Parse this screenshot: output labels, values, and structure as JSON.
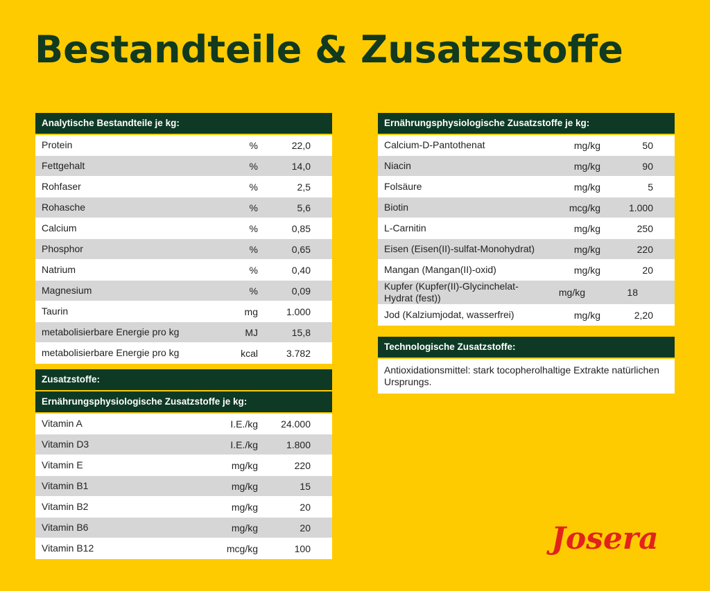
{
  "title": "Bestandteile & Zusatzstoffe",
  "analytic": {
    "header": "Analytische Bestandteile je kg:",
    "rows": [
      [
        "Protein",
        "%",
        "22,0"
      ],
      [
        "Fettgehalt",
        "%",
        "14,0"
      ],
      [
        "Rohfaser",
        "%",
        "2,5"
      ],
      [
        "Rohasche",
        "%",
        "5,6"
      ],
      [
        "Calcium",
        "%",
        "0,85"
      ],
      [
        "Phosphor",
        "%",
        "0,65"
      ],
      [
        "Natrium",
        "%",
        "0,40"
      ],
      [
        "Magnesium",
        "%",
        "0,09"
      ],
      [
        "Taurin",
        "mg",
        "1.000"
      ],
      [
        "metabolisierbare Energie pro kg",
        "MJ",
        "15,8"
      ],
      [
        "metabolisierbare Energie pro kg",
        "kcal",
        "3.782"
      ]
    ]
  },
  "additives": {
    "header": "Zusatzstoffe:",
    "subheader": "Ernährungsphysiologische Zusatzstoffe je kg:",
    "rows": [
      [
        "Vitamin A",
        "I.E./kg",
        "24.000"
      ],
      [
        "Vitamin D3",
        "I.E./kg",
        "1.800"
      ],
      [
        "Vitamin E",
        "mg/kg",
        "220"
      ],
      [
        "Vitamin B1",
        "mg/kg",
        "15"
      ],
      [
        "Vitamin B2",
        "mg/kg",
        "20"
      ],
      [
        "Vitamin B6",
        "mg/kg",
        "20"
      ],
      [
        "Vitamin B12",
        "mcg/kg",
        "100"
      ]
    ]
  },
  "nutritional": {
    "header": "Ernährungsphysiologische Zusatzstoffe je kg:",
    "rows": [
      [
        "Calcium-D-Pantothenat",
        "mg/kg",
        "50"
      ],
      [
        "Niacin",
        "mg/kg",
        "90"
      ],
      [
        "Folsäure",
        "mg/kg",
        "5"
      ],
      [
        "Biotin",
        "mcg/kg",
        "1.000"
      ],
      [
        "L-Carnitin",
        "mg/kg",
        "250"
      ],
      [
        "Eisen (Eisen(II)-sulfat-Monohydrat)",
        "mg/kg",
        "220"
      ],
      [
        "Mangan (Mangan(II)-oxid)",
        "mg/kg",
        "20"
      ],
      [
        "Kupfer (Kupfer(II)-Glycinchelat-Hydrat (fest))",
        "mg/kg",
        "18"
      ],
      [
        "Jod (Kalziumjodat, wasserfrei)",
        "mg/kg",
        "2,20"
      ]
    ]
  },
  "technological": {
    "header": "Technologische Zusatzstoffe:",
    "text": "Antioxidationsmittel: stark tocopherolhaltige Extrakte natürlichen Ursprungs."
  },
  "logo": "Josera"
}
